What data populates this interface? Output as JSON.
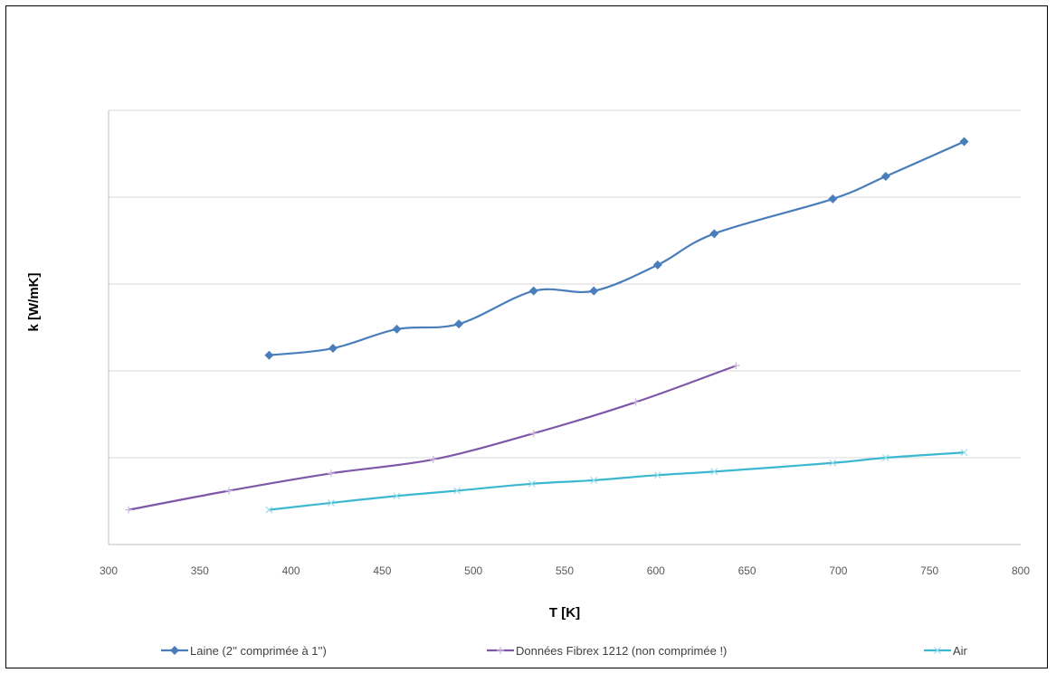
{
  "chart_data": {
    "type": "line",
    "title": "",
    "xlabel": "T [K]",
    "ylabel": "k [W/mK]",
    "xlim": [
      300,
      800
    ],
    "x_ticks": [
      "300",
      "350",
      "400",
      "450",
      "500",
      "550",
      "600",
      "650",
      "700",
      "750",
      "800"
    ],
    "y_tick_labels_visible": false,
    "ylim": [
      0,
      0.3
    ],
    "grid": true,
    "legend_position": "bottom",
    "series": [
      {
        "name": "Laine (2'' comprimée à 1'')",
        "color": "#4a7ebb",
        "marker": "diamond",
        "x": [
          388,
          423,
          458,
          492,
          533,
          566,
          601,
          632,
          697,
          726,
          769
        ],
        "y": [
          0.109,
          0.113,
          0.124,
          0.127,
          0.146,
          0.146,
          0.161,
          0.179,
          0.199,
          0.212,
          0.232
        ]
      },
      {
        "name": "Données Fibrex 1212 (non comprimée !)",
        "color": "#7e57a8",
        "marker": "plus",
        "x": [
          311,
          366,
          422,
          478,
          533,
          589,
          644
        ],
        "y": [
          0.02,
          0.031,
          0.041,
          0.049,
          0.064,
          0.082,
          0.103
        ]
      },
      {
        "name": "Air",
        "color": "#3bb8cf",
        "marker": "x",
        "x": [
          388,
          422,
          458,
          491,
          532,
          566,
          601,
          632,
          697,
          726,
          769
        ],
        "y": [
          0.02,
          0.024,
          0.028,
          0.031,
          0.035,
          0.037,
          0.04,
          0.042,
          0.047,
          0.05,
          0.053
        ]
      }
    ]
  }
}
